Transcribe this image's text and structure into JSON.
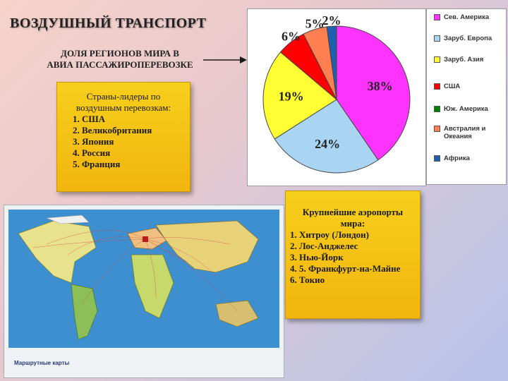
{
  "slide": {
    "title": "ВОЗДУШНЫЙ ТРАНСПОРТ",
    "subtitle_line1": "ДОЛЯ РЕГИОНОВ МИРА В",
    "subtitle_line2": "АВИА ПАССАЖИРОПЕРЕВОЗКЕ"
  },
  "leaders_box": {
    "heading_line1": "Страны-лидеры по",
    "heading_line2": "воздушным перевозкам:",
    "items": [
      "1. США",
      "2. Великобритания",
      "3. Япония",
      "4. Россия",
      "5. Франция"
    ]
  },
  "airports_box": {
    "heading_line1": "Крупнейшие аэропорты",
    "heading_line2": "мира:",
    "items": [
      "1. Хитроу (Лондон)",
      "2. Лос-Анджелес",
      "3. Нью-Йорк",
      "4. 5. Франкфурт-на-Майне",
      "6. Токио"
    ]
  },
  "map": {
    "caption": "Маршрутные карты"
  },
  "chart_data": {
    "type": "pie",
    "slices": [
      {
        "label": "Сев. Америка",
        "value": 38,
        "display": "38%",
        "color": "#ff33ff"
      },
      {
        "label": "Заруб. Европа",
        "value": 24,
        "display": "24%",
        "color": "#a9d4f2"
      },
      {
        "label": "Заруб. Азия",
        "value": 19,
        "display": "19%",
        "color": "#ffff33"
      },
      {
        "label": "США",
        "value": 6,
        "display": "6%",
        "color": "#ff0000"
      },
      {
        "label": "Юж. Америка",
        "value": 0,
        "display": "",
        "color": "#008000"
      },
      {
        "label": "Австралия и Океания",
        "value": 5,
        "display": "5%",
        "color": "#ff7f50"
      },
      {
        "label": "Африка",
        "value": 2,
        "display": "2%",
        "color": "#1f5fb0"
      }
    ]
  }
}
